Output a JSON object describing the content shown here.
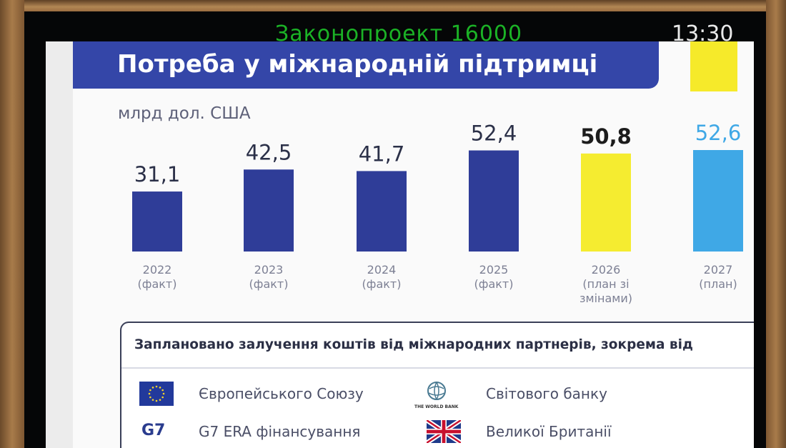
{
  "header": {
    "bill_label": "Законопроект 16000",
    "clock": "13:30"
  },
  "slide": {
    "title": "Потреба у міжнародній підтримці",
    "unit": "млрд дол. США"
  },
  "colors": {
    "fact": "#2f3d98",
    "plan_with_changes": "#f5ec30",
    "plan": "#3fa8e6",
    "title_bar": "#3446a8"
  },
  "chart_data": {
    "type": "bar",
    "title": "Потреба у міжнародній підтримці",
    "ylabel": "млрд дол. США",
    "categories": [
      [
        "2022",
        "(факт)"
      ],
      [
        "2023",
        "(факт)"
      ],
      [
        "2024",
        "(факт)"
      ],
      [
        "2025",
        "(факт)"
      ],
      [
        "2026",
        "(план зі",
        "змінами)"
      ],
      [
        "2027",
        "(план)"
      ]
    ],
    "values": [
      31.1,
      42.5,
      41.7,
      52.4,
      50.8,
      52.6
    ],
    "value_labels": [
      "31,1",
      "42,5",
      "41,7",
      "52,4",
      "50,8",
      "52,6"
    ],
    "bar_kinds": [
      "fact",
      "fact",
      "fact",
      "fact",
      "plan_with_changes",
      "plan"
    ],
    "label_colors": [
      "#2b3048",
      "#2b3048",
      "#2b3048",
      "#2b3048",
      "#1c1c1c",
      "#3fa8e6"
    ],
    "ylim": [
      0,
      60
    ],
    "grid": false
  },
  "partners": {
    "heading": "Заплановано залучення коштів від  міжнародних партнерів, зокрема від",
    "items": [
      {
        "icon": "eu-flag-icon",
        "label": "Європейського Союзу"
      },
      {
        "icon": "world-bank-icon",
        "label": "Світового банку",
        "logo_text": "THE WORLD BANK"
      },
      {
        "icon": "g7-icon",
        "label": "G7 ERA фінансування",
        "logo_text": "G7"
      },
      {
        "icon": "uk-flag-icon",
        "label": "Великої Британії"
      }
    ]
  }
}
